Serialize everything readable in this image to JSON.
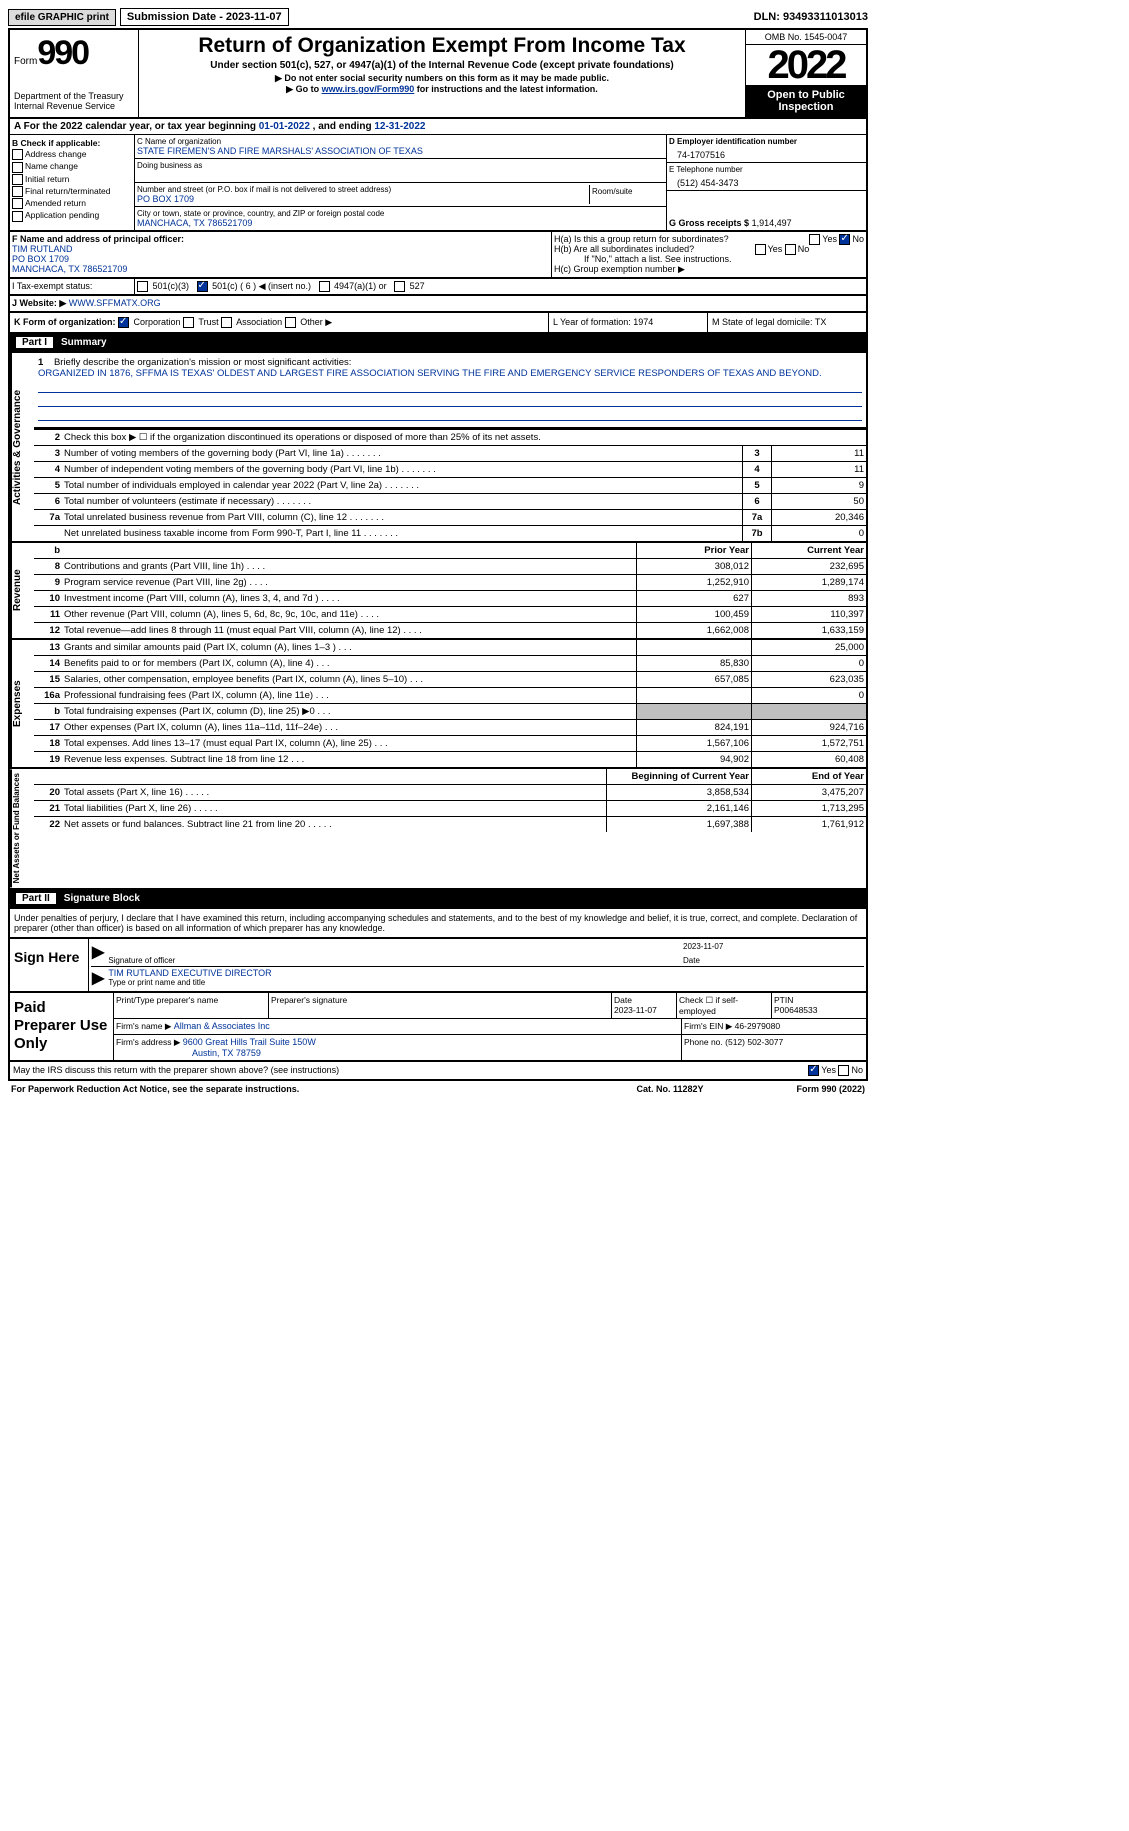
{
  "topbar": {
    "efile": "efile GRAPHIC print",
    "submission": "Submission Date - 2023-11-07",
    "dln": "DLN: 93493311013013"
  },
  "header": {
    "form_label": "Form",
    "form_no": "990",
    "title": "Return of Organization Exempt From Income Tax",
    "sub1": "Under section 501(c), 527, or 4947(a)(1) of the Internal Revenue Code (except private foundations)",
    "sub2": "▶ Do not enter social security numbers on this form as it may be made public.",
    "sub3_pre": "▶ Go to ",
    "sub3_link": "www.irs.gov/Form990",
    "sub3_post": " for instructions and the latest information.",
    "dept": "Department of the Treasury Internal Revenue Service",
    "omb": "OMB No. 1545-0047",
    "year": "2022",
    "inspect": "Open to Public Inspection"
  },
  "rowA": {
    "pre": "A For the 2022 calendar year, or tax year beginning ",
    "begin": "01-01-2022",
    "mid": " , and ending ",
    "end": "12-31-2022"
  },
  "colB": {
    "hdr": "B Check if applicable:",
    "items": [
      "Address change",
      "Name change",
      "Initial return",
      "Final return/terminated",
      "Amended return",
      "Application pending"
    ]
  },
  "colC": {
    "name_label": "C Name of organization",
    "name": "STATE FIREMEN'S AND FIRE MARSHALS' ASSOCIATION OF TEXAS",
    "dba_label": "Doing business as",
    "street_label": "Number and street (or P.O. box if mail is not delivered to street address)",
    "room_label": "Room/suite",
    "street": "PO BOX 1709",
    "city_label": "City or town, state or province, country, and ZIP or foreign postal code",
    "city": "MANCHACA, TX  786521709"
  },
  "colD": {
    "ein_label": "D Employer identification number",
    "ein": "74-1707516",
    "tel_label": "E Telephone number",
    "tel": "(512) 454-3473",
    "gross_label": "G Gross receipts $",
    "gross": "1,914,497"
  },
  "rowF": {
    "label": "F Name and address of principal officer:",
    "name": "TIM RUTLAND",
    "addr1": "PO BOX 1709",
    "addr2": "MANCHACA, TX  786521709"
  },
  "rowH": {
    "a": "H(a)  Is this a group return for subordinates?",
    "a_yes": "Yes",
    "a_no": "No",
    "b": "H(b)  Are all subordinates included?",
    "b_yes": "Yes",
    "b_no": "No",
    "b_note": "If \"No,\" attach a list. See instructions.",
    "c": "H(c)  Group exemption number ▶"
  },
  "rowI": {
    "label": "I  Tax-exempt status:",
    "opts": [
      "501(c)(3)",
      "501(c) ( 6 ) ◀ (insert no.)",
      "4947(a)(1) or",
      "527"
    ]
  },
  "rowJ": {
    "label": "J  Website: ▶",
    "val": "WWW.SFFMATX.ORG"
  },
  "rowK": {
    "label": "K Form of organization:",
    "opts": [
      "Corporation",
      "Trust",
      "Association",
      "Other ▶"
    ],
    "L": "L Year of formation: 1974",
    "M": "M State of legal domicile: TX"
  },
  "part1": {
    "num": "Part I",
    "title": "Summary"
  },
  "mission": {
    "num": "1",
    "label": "Briefly describe the organization's mission or most significant activities:",
    "text": "ORGANIZED IN 1876, SFFMA IS TEXAS' OLDEST AND LARGEST FIRE ASSOCIATION SERVING THE FIRE AND EMERGENCY SERVICE RESPONDERS OF TEXAS AND BEYOND."
  },
  "gov": {
    "label": "Activities & Governance",
    "line2": "Check this box ▶ ☐ if the organization discontinued its operations or disposed of more than 25% of its net assets.",
    "rows": [
      {
        "n": "3",
        "t": "Number of voting members of the governing body (Part VI, line 1a)",
        "b": "3",
        "v": "11"
      },
      {
        "n": "4",
        "t": "Number of independent voting members of the governing body (Part VI, line 1b)",
        "b": "4",
        "v": "11"
      },
      {
        "n": "5",
        "t": "Total number of individuals employed in calendar year 2022 (Part V, line 2a)",
        "b": "5",
        "v": "9"
      },
      {
        "n": "6",
        "t": "Total number of volunteers (estimate if necessary)",
        "b": "6",
        "v": "50"
      },
      {
        "n": "7a",
        "t": "Total unrelated business revenue from Part VIII, column (C), line 12",
        "b": "7a",
        "v": "20,346"
      },
      {
        "n": "",
        "t": "Net unrelated business taxable income from Form 990-T, Part I, line 11",
        "b": "7b",
        "v": "0"
      }
    ]
  },
  "rev": {
    "label": "Revenue",
    "hdr_b": "b",
    "hdr_prior": "Prior Year",
    "hdr_cur": "Current Year",
    "rows": [
      {
        "n": "8",
        "t": "Contributions and grants (Part VIII, line 1h)",
        "p": "308,012",
        "c": "232,695"
      },
      {
        "n": "9",
        "t": "Program service revenue (Part VIII, line 2g)",
        "p": "1,252,910",
        "c": "1,289,174"
      },
      {
        "n": "10",
        "t": "Investment income (Part VIII, column (A), lines 3, 4, and 7d )",
        "p": "627",
        "c": "893"
      },
      {
        "n": "11",
        "t": "Other revenue (Part VIII, column (A), lines 5, 6d, 8c, 9c, 10c, and 11e)",
        "p": "100,459",
        "c": "110,397"
      },
      {
        "n": "12",
        "t": "Total revenue—add lines 8 through 11 (must equal Part VIII, column (A), line 12)",
        "p": "1,662,008",
        "c": "1,633,159"
      }
    ]
  },
  "exp": {
    "label": "Expenses",
    "rows": [
      {
        "n": "13",
        "t": "Grants and similar amounts paid (Part IX, column (A), lines 1–3 )",
        "p": "",
        "c": "25,000"
      },
      {
        "n": "14",
        "t": "Benefits paid to or for members (Part IX, column (A), line 4)",
        "p": "85,830",
        "c": "0"
      },
      {
        "n": "15",
        "t": "Salaries, other compensation, employee benefits (Part IX, column (A), lines 5–10)",
        "p": "657,085",
        "c": "623,035"
      },
      {
        "n": "16a",
        "t": "Professional fundraising fees (Part IX, column (A), line 11e)",
        "p": "",
        "c": "0"
      },
      {
        "n": "b",
        "t": "Total fundraising expenses (Part IX, column (D), line 25) ▶0",
        "p": "GRAY",
        "c": "GRAY"
      },
      {
        "n": "17",
        "t": "Other expenses (Part IX, column (A), lines 11a–11d, 11f–24e)",
        "p": "824,191",
        "c": "924,716"
      },
      {
        "n": "18",
        "t": "Total expenses. Add lines 13–17 (must equal Part IX, column (A), line 25)",
        "p": "1,567,106",
        "c": "1,572,751"
      },
      {
        "n": "19",
        "t": "Revenue less expenses. Subtract line 18 from line 12",
        "p": "94,902",
        "c": "60,408"
      }
    ]
  },
  "net": {
    "label": "Net Assets or Fund Balances",
    "hdr_prior": "Beginning of Current Year",
    "hdr_cur": "End of Year",
    "rows": [
      {
        "n": "20",
        "t": "Total assets (Part X, line 16)",
        "p": "3,858,534",
        "c": "3,475,207"
      },
      {
        "n": "21",
        "t": "Total liabilities (Part X, line 26)",
        "p": "2,161,146",
        "c": "1,713,295"
      },
      {
        "n": "22",
        "t": "Net assets or fund balances. Subtract line 21 from line 20",
        "p": "1,697,388",
        "c": "1,761,912"
      }
    ]
  },
  "part2": {
    "num": "Part II",
    "title": "Signature Block"
  },
  "sig": {
    "intro": "Under penalties of perjury, I declare that I have examined this return, including accompanying schedules and statements, and to the best of my knowledge and belief, it is true, correct, and complete. Declaration of preparer (other than officer) is based on all information of which preparer has any knowledge.",
    "sign_here": "Sign Here",
    "sig_officer": "Signature of officer",
    "date": "Date",
    "date_val": "2023-11-07",
    "name": "TIM RUTLAND  EXECUTIVE DIRECTOR",
    "name_label": "Type or print name and title"
  },
  "prep": {
    "label": "Paid Preparer Use Only",
    "r1": {
      "a": "Print/Type preparer's name",
      "b": "Preparer's signature",
      "c": "Date",
      "c_val": "2023-11-07",
      "d": "Check ☐ if self-employed",
      "e": "PTIN",
      "e_val": "P00648533"
    },
    "r2": {
      "a": "Firm's name    ▶",
      "a_val": "Allman & Associates Inc",
      "b": "Firm's EIN ▶",
      "b_val": "46-2979080"
    },
    "r3": {
      "a": "Firm's address ▶",
      "a_val1": "9600 Great Hills Trail Suite 150W",
      "a_val2": "Austin, TX  78759",
      "b": "Phone no.",
      "b_val": "(512) 502-3077"
    }
  },
  "footer": {
    "q": "May the IRS discuss this return with the preparer shown above? (see instructions)",
    "yes": "Yes",
    "no": "No",
    "paperwork": "For Paperwork Reduction Act Notice, see the separate instructions.",
    "cat": "Cat. No. 11282Y",
    "form": "Form 990 (2022)"
  }
}
